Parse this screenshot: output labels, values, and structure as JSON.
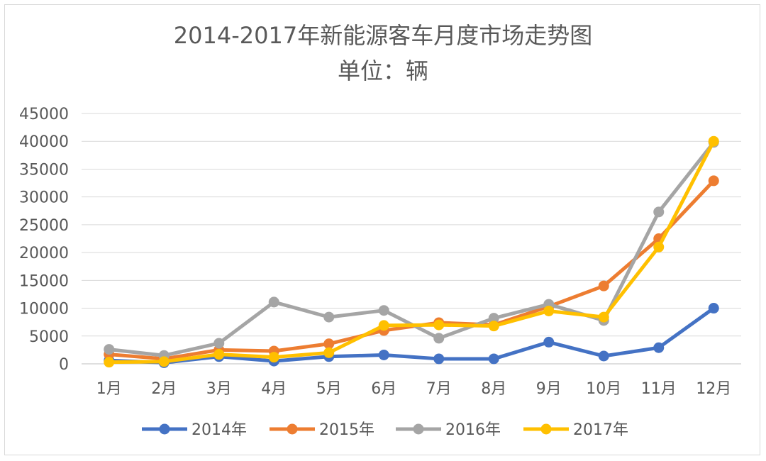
{
  "chart_data": {
    "type": "line",
    "title": "2014-2017年新能源客车月度市场走势图",
    "subtitle": "单位：辆",
    "categories": [
      "1月",
      "2月",
      "3月",
      "4月",
      "5月",
      "6月",
      "7月",
      "8月",
      "9月",
      "10月",
      "11月",
      "12月"
    ],
    "ylim": [
      0,
      45000
    ],
    "yticks": [
      0,
      5000,
      10000,
      15000,
      20000,
      25000,
      30000,
      35000,
      40000,
      45000
    ],
    "grid": true,
    "legend_position": "bottom",
    "series": [
      {
        "name": "2014年",
        "color": "#4472c4",
        "values": [
          600,
          200,
          1300,
          500,
          1300,
          1600,
          900,
          900,
          3900,
          1400,
          2900,
          10000
        ]
      },
      {
        "name": "2015年",
        "color": "#ed7d31",
        "values": [
          1700,
          900,
          2500,
          2300,
          3600,
          6000,
          7400,
          7000,
          10300,
          14000,
          22500,
          32900
        ]
      },
      {
        "name": "2016年",
        "color": "#a5a5a5",
        "values": [
          2600,
          1500,
          3700,
          11100,
          8400,
          9600,
          4600,
          8200,
          10700,
          7800,
          27300,
          39800
        ]
      },
      {
        "name": "2017年",
        "color": "#ffc000",
        "values": [
          300,
          400,
          1700,
          1200,
          2000,
          6900,
          7000,
          6800,
          9500,
          8400,
          21000,
          40000
        ]
      }
    ]
  }
}
